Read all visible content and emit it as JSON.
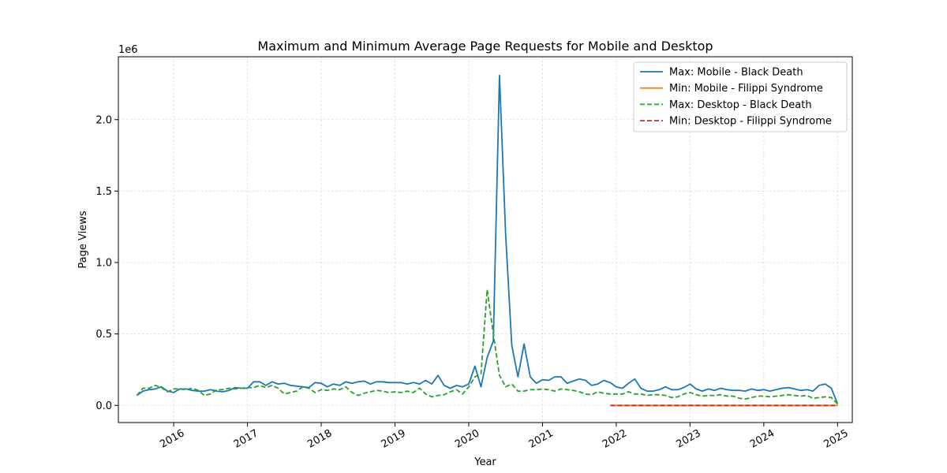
{
  "chart_data": {
    "type": "line",
    "title": "Maximum and Minimum Average Page Requests for Mobile and Desktop",
    "xlabel": "Year",
    "ylabel": "Page Views",
    "y_multiplier_label": "1e6",
    "xlim": [
      2015.25,
      2025.2
    ],
    "ylim": [
      -120000,
      2440000
    ],
    "x_ticks": [
      2016,
      2017,
      2018,
      2019,
      2020,
      2021,
      2022,
      2023,
      2024,
      2025
    ],
    "y_ticks": [
      0.0,
      0.5,
      1.0,
      1.5,
      2.0
    ],
    "y_tick_labels": [
      "0.0",
      "0.5",
      "1.0",
      "1.5",
      "2.0"
    ],
    "grid": true,
    "legend_position": "top-right",
    "x_start": 2015.5,
    "x_step_months": 1,
    "series": [
      {
        "name": "Max: Mobile - Black Death",
        "color": "#1f77b4",
        "dash": "solid",
        "start": 2015.5,
        "values": [
          70000,
          100000,
          110000,
          115000,
          130000,
          100000,
          90000,
          115000,
          115000,
          105000,
          100000,
          100000,
          110000,
          100000,
          95000,
          105000,
          125000,
          120000,
          120000,
          165000,
          165000,
          140000,
          165000,
          150000,
          155000,
          140000,
          135000,
          130000,
          125000,
          160000,
          155000,
          130000,
          150000,
          140000,
          165000,
          155000,
          165000,
          170000,
          150000,
          165000,
          165000,
          160000,
          160000,
          160000,
          150000,
          160000,
          150000,
          175000,
          150000,
          210000,
          140000,
          120000,
          140000,
          130000,
          150000,
          275000,
          130000,
          335000,
          450000,
          2310000,
          1200000,
          420000,
          200000,
          430000,
          200000,
          155000,
          180000,
          175000,
          200000,
          200000,
          155000,
          170000,
          185000,
          175000,
          140000,
          150000,
          175000,
          160000,
          130000,
          120000,
          155000,
          185000,
          120000,
          100000,
          100000,
          110000,
          130000,
          110000,
          110000,
          125000,
          150000,
          115000,
          100000,
          115000,
          105000,
          120000,
          110000,
          105000,
          105000,
          100000,
          115000,
          105000,
          110000,
          100000,
          110000,
          120000,
          125000,
          115000,
          105000,
          110000,
          100000,
          140000,
          150000,
          120000,
          10000
        ]
      },
      {
        "name": "Min: Mobile - Filippi Syndrome",
        "color": "#ff7f0e",
        "dash": "solid",
        "start": 2021.92,
        "values": [
          0,
          0,
          0,
          0,
          0,
          0,
          0,
          0,
          0,
          0,
          0,
          0,
          0,
          0,
          0,
          0,
          0,
          0,
          0,
          0,
          0,
          0,
          0,
          0,
          0,
          0,
          0,
          0,
          0,
          0,
          0,
          0,
          0,
          0,
          0,
          0,
          0,
          0
        ]
      },
      {
        "name": "Max: Desktop - Black Death",
        "color": "#2ca02c",
        "dash": "dashed",
        "start": 2015.5,
        "values": [
          70000,
          120000,
          120000,
          140000,
          125000,
          95000,
          115000,
          115000,
          110000,
          120000,
          105000,
          70000,
          80000,
          110000,
          110000,
          120000,
          115000,
          120000,
          125000,
          125000,
          140000,
          125000,
          140000,
          120000,
          80000,
          90000,
          100000,
          130000,
          120000,
          90000,
          110000,
          105000,
          115000,
          110000,
          130000,
          90000,
          70000,
          85000,
          95000,
          105000,
          100000,
          90000,
          95000,
          90000,
          100000,
          90000,
          120000,
          80000,
          60000,
          70000,
          75000,
          95000,
          110000,
          80000,
          130000,
          200000,
          220000,
          810000,
          500000,
          210000,
          130000,
          150000,
          100000,
          100000,
          110000,
          110000,
          115000,
          110000,
          100000,
          115000,
          110000,
          105000,
          95000,
          80000,
          75000,
          95000,
          85000,
          80000,
          80000,
          80000,
          95000,
          80000,
          80000,
          70000,
          75000,
          75000,
          70000,
          55000,
          60000,
          80000,
          90000,
          75000,
          65000,
          70000,
          70000,
          75000,
          65000,
          65000,
          50000,
          45000,
          55000,
          65000,
          65000,
          60000,
          65000,
          70000,
          75000,
          70000,
          65000,
          70000,
          50000,
          55000,
          60000,
          55000,
          10000
        ]
      },
      {
        "name": "Min: Desktop - Filippi Syndrome",
        "color": "#d62728",
        "dash": "dashed",
        "start": 2021.92,
        "values": [
          0,
          0,
          0,
          0,
          0,
          0,
          0,
          0,
          0,
          0,
          0,
          0,
          0,
          0,
          0,
          0,
          0,
          0,
          0,
          0,
          0,
          0,
          0,
          0,
          0,
          0,
          0,
          0,
          0,
          0,
          0,
          0,
          0,
          0,
          0,
          0,
          0,
          0
        ]
      }
    ]
  }
}
